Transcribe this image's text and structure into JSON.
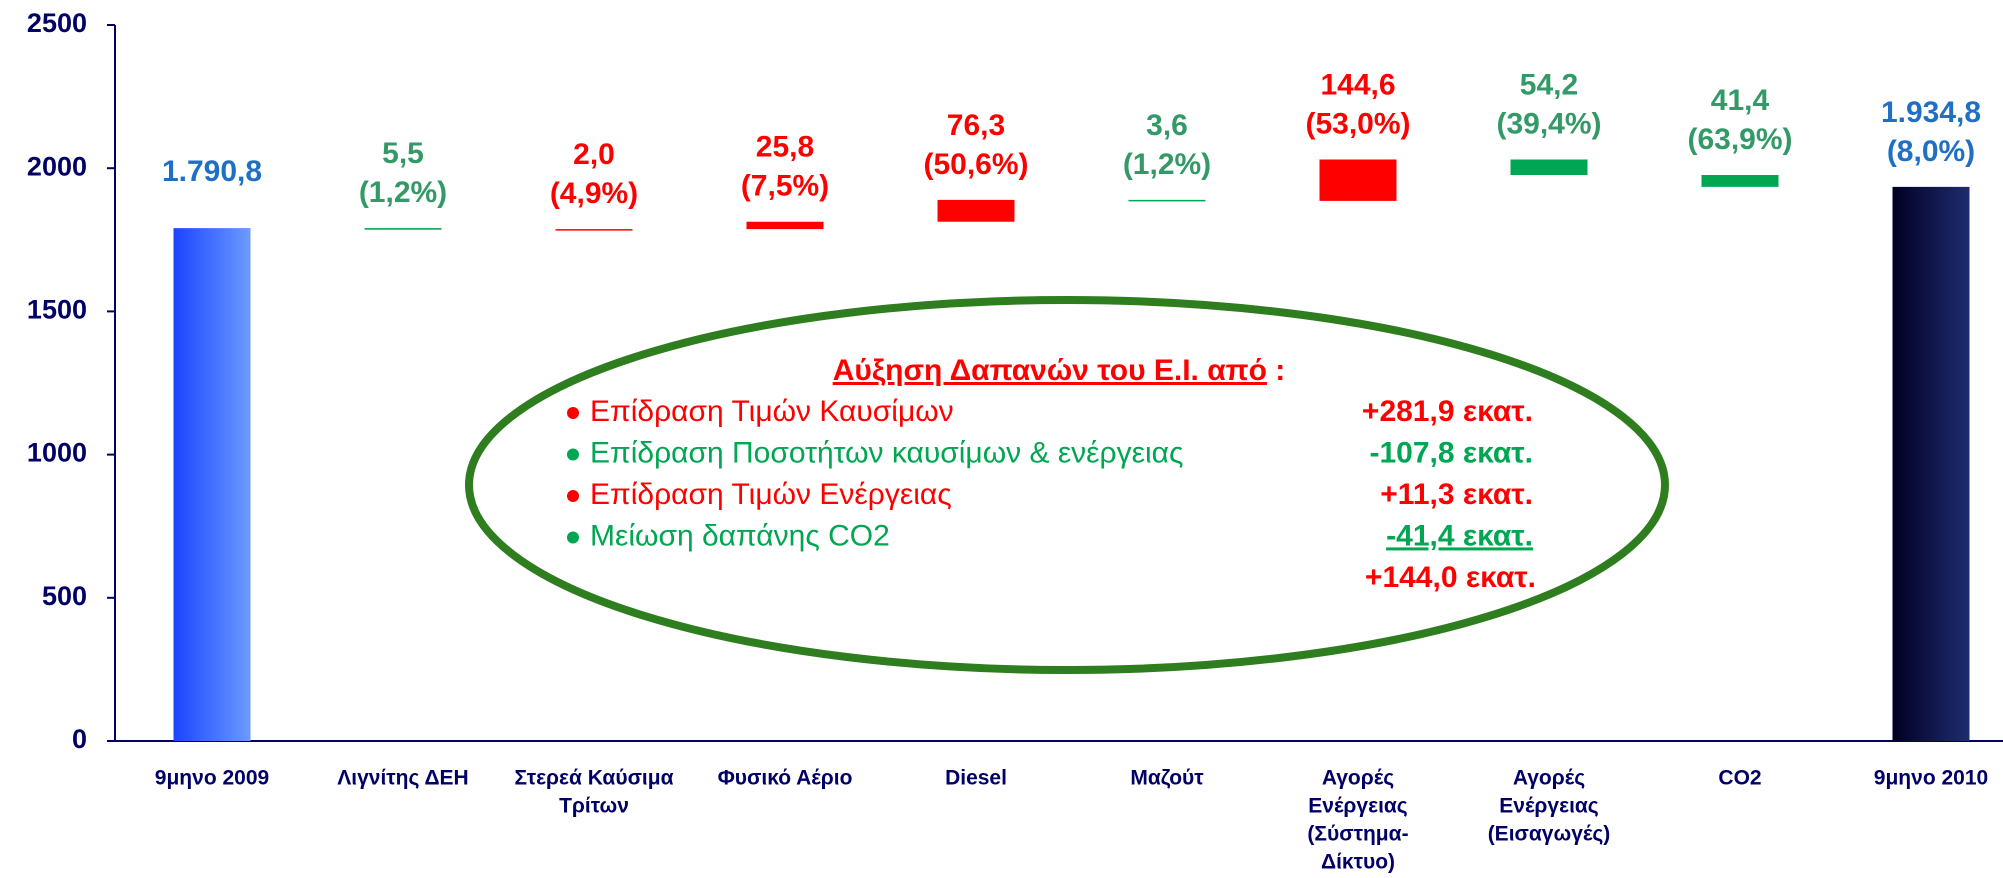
{
  "chart_data": {
    "type": "waterfall",
    "categories": [
      [
        "9μηνο 2009"
      ],
      [
        "Λιγνίτης ΔΕΗ"
      ],
      [
        "Στερεά Καύσιμα",
        "Τρίτων"
      ],
      [
        "Φυσικό Αέριο"
      ],
      [
        "Diesel"
      ],
      [
        "Μαζούτ"
      ],
      [
        "Αγορές",
        "Ενέργειας",
        "(Σύστημα-",
        "Δίκτυο)"
      ],
      [
        "Αγορές",
        "Ενέργειας",
        "(Εισαγωγές)"
      ],
      [
        "CO2"
      ],
      [
        "9μηνο 2010"
      ]
    ],
    "measures": [
      "total",
      "decrease",
      "increase",
      "increase",
      "increase",
      "decrease",
      "increase",
      "decrease",
      "decrease",
      "total"
    ],
    "values": [
      1790.8,
      5.5,
      2.0,
      25.8,
      76.3,
      3.6,
      144.6,
      54.2,
      41.4,
      1934.8
    ],
    "value_labels": [
      "1.790,8",
      "5,5",
      "2,0",
      "25,8",
      "76,3",
      "3,6",
      "144,6",
      "54,2",
      "41,4",
      "1.934,8"
    ],
    "percents": [
      null,
      1.2,
      4.9,
      7.5,
      50.6,
      1.2,
      53.0,
      39.4,
      63.9,
      8.0
    ],
    "percent_labels": [
      null,
      "(1,2%)",
      "(4,9%)",
      "(7,5%)",
      "(50,6%)",
      "(1,2%)",
      "(53,0%)",
      "(39,4%)",
      "(63,9%)",
      "(8,0%)"
    ],
    "colors": [
      "#3366ff",
      "#00a651",
      "#ff0000",
      "#ff0000",
      "#ff0000",
      "#00a651",
      "#ff0000",
      "#00a651",
      "#00a651",
      "#000033"
    ],
    "label_colors": [
      "#1f6fc5",
      "#339966",
      "#ff0000",
      "#ff0000",
      "#ff0000",
      "#339966",
      "#ff0000",
      "#339966",
      "#339966",
      "#1f6fc5"
    ],
    "ylim": [
      0,
      2500
    ],
    "yticks": [
      0,
      500,
      1000,
      1500,
      2000,
      2500
    ],
    "grid": false,
    "annotation": {
      "title": "Αύξηση Δαπανών του Ε.Ι. από",
      "title_suffix": " :",
      "items": [
        {
          "text": "Επίδραση Τιμών Καυσίμων",
          "amount": "+281,9 εκατ.",
          "color": "#ff0000"
        },
        {
          "text": "Επίδραση Ποσοτήτων καυσίμων & ενέργειας",
          "amount": "-107,8 εκατ.",
          "color": "#00a651"
        },
        {
          "text": "Επίδραση Τιμών Ενέργειας",
          "amount": "+11,3 εκατ.",
          "color": "#ff0000"
        },
        {
          "text": "Μείωση δαπάνης CO2",
          "amount": "-41,4 εκατ.",
          "color": "#00a651"
        }
      ],
      "total": "+144,0 εκατ.",
      "total_color": "#ff0000"
    }
  }
}
